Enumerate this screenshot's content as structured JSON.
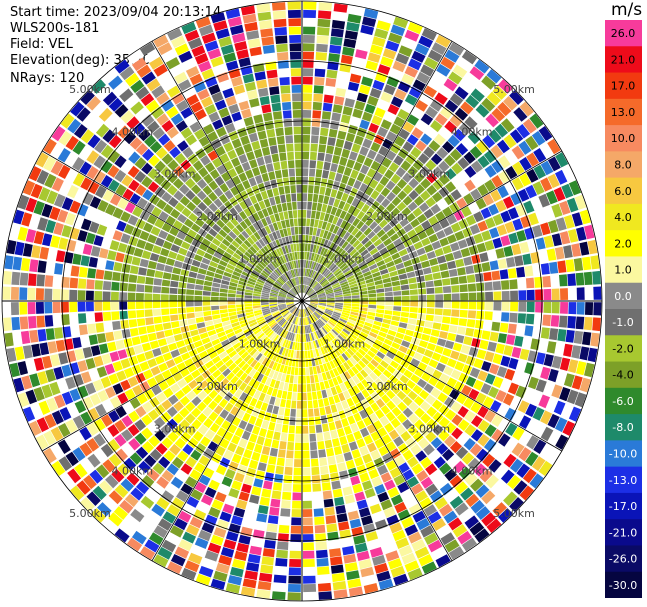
{
  "header": {
    "start_time": "Start time: 2023/09/04 20:13:14",
    "instrument": "WLS200s-181",
    "field": "Field: VEL",
    "elevation": "Elevation(deg): 35.30",
    "nrays": "NRays: 120"
  },
  "colorbar": {
    "unit": "m/s",
    "entries": [
      {
        "label": "26.0",
        "color": "#f73b9b"
      },
      {
        "label": "21.0",
        "color": "#ee0b1a"
      },
      {
        "label": "17.0",
        "color": "#f23a10"
      },
      {
        "label": "13.0",
        "color": "#f56a2a"
      },
      {
        "label": "10.0",
        "color": "#f78a60"
      },
      {
        "label": "8.0",
        "color": "#f5a868"
      },
      {
        "label": "6.0",
        "color": "#f7c840"
      },
      {
        "label": "4.0",
        "color": "#f0e820"
      },
      {
        "label": "2.0",
        "color": "#ffff00"
      },
      {
        "label": "1.0",
        "color": "#fbf8a0"
      },
      {
        "label": "0.0",
        "color": "#8a8a8a"
      },
      {
        "label": "-1.0",
        "color": "#6f6f6f"
      },
      {
        "label": "-2.0",
        "color": "#a8c830"
      },
      {
        "label": "-4.0",
        "color": "#7da028"
      },
      {
        "label": "-6.0",
        "color": "#2f8a2c"
      },
      {
        "label": "-8.0",
        "color": "#1e8a6a"
      },
      {
        "label": "-10.0",
        "color": "#2a7ad8"
      },
      {
        "label": "-13.0",
        "color": "#1c2fe6"
      },
      {
        "label": "-17.0",
        "color": "#0a14b8"
      },
      {
        "label": "-21.0",
        "color": "#0a0a8c"
      },
      {
        "label": "-26.0",
        "color": "#0a0a66"
      },
      {
        "label": "-30.0",
        "color": "#050540"
      }
    ]
  },
  "chart_data": {
    "type": "heatmap",
    "projection": "polar PPI",
    "field": "VEL",
    "units": "m/s",
    "nrays": 120,
    "range_rings_km": [
      1,
      2,
      3,
      4,
      5
    ],
    "ring_labels": [
      "1.00km",
      "2.00km",
      "3.00km",
      "4.00km",
      "5.00km"
    ],
    "max_range_km": 5.0,
    "spokes_deg": [
      0,
      30,
      60,
      90,
      120,
      150,
      180,
      210,
      240,
      270,
      300,
      330
    ],
    "near_field_pattern": {
      "north_half": "negative velocities (-1 to -4 m/s), green/grey",
      "south_half": "positive velocities (1 to 4 m/s), yellow with orange patches",
      "clean_range_km": 3.2
    },
    "far_field": "noisy, random colours across full scale"
  }
}
